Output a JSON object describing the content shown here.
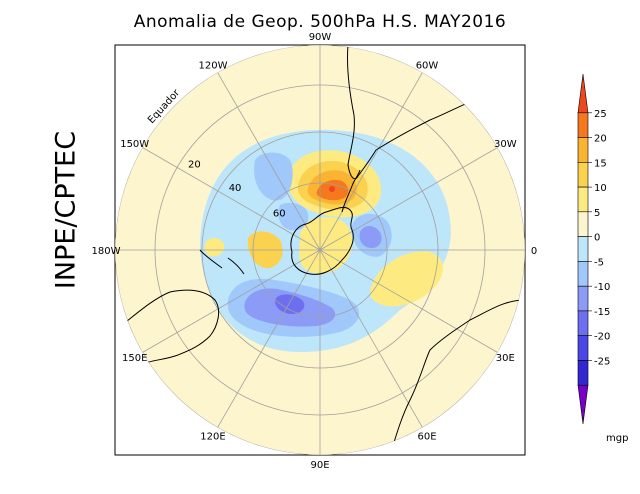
{
  "title": "Anomalia de Geop. 500hPa H.S. MAY2016",
  "watermark": "INPE/CPTEC",
  "map": {
    "projection": "south-polar-stereographic",
    "background_color": "#fdf5cd",
    "longitude_labels": [
      {
        "id": "lon-90w",
        "text": "90W",
        "lon": -90
      },
      {
        "id": "lon-60w",
        "text": "60W",
        "lon": -60
      },
      {
        "id": "lon-30w",
        "text": "30W",
        "lon": -30
      },
      {
        "id": "lon-0",
        "text": "0",
        "lon": 0
      },
      {
        "id": "lon-30e",
        "text": "30E",
        "lon": 30
      },
      {
        "id": "lon-60e",
        "text": "60E",
        "lon": 60
      },
      {
        "id": "lon-90e",
        "text": "90E",
        "lon": 90
      },
      {
        "id": "lon-120e",
        "text": "120E",
        "lon": 120
      },
      {
        "id": "lon-150e",
        "text": "150E",
        "lon": 150
      },
      {
        "id": "lon-180w",
        "text": "180W",
        "lon": 180
      },
      {
        "id": "lon-150w",
        "text": "150W",
        "lon": -150
      },
      {
        "id": "lon-120w",
        "text": "120W",
        "lon": -120
      }
    ],
    "latitude_labels": [
      {
        "id": "lat-20",
        "text": "20"
      },
      {
        "id": "lat-40",
        "text": "40"
      },
      {
        "id": "lat-60",
        "text": "60"
      }
    ],
    "equator_label": "Equador"
  },
  "colorbar": {
    "unit": "mgp",
    "levels": [
      25,
      20,
      15,
      10,
      5,
      0,
      -5,
      -10,
      -15,
      -20,
      -25
    ],
    "labels": [
      "25",
      "20",
      "15",
      "10",
      "5",
      "0",
      "-5",
      "-10",
      "-15",
      "-20",
      "-25"
    ],
    "colors": [
      "#f0461e",
      "#f5781e",
      "#fab432",
      "#fad250",
      "#fdeb82",
      "#fdf5cd",
      "#bee6fa",
      "#a0c8fa",
      "#8c9bf5",
      "#6e6ef0",
      "#4b46e6",
      "#3228d2",
      "#7800c8"
    ]
  }
}
